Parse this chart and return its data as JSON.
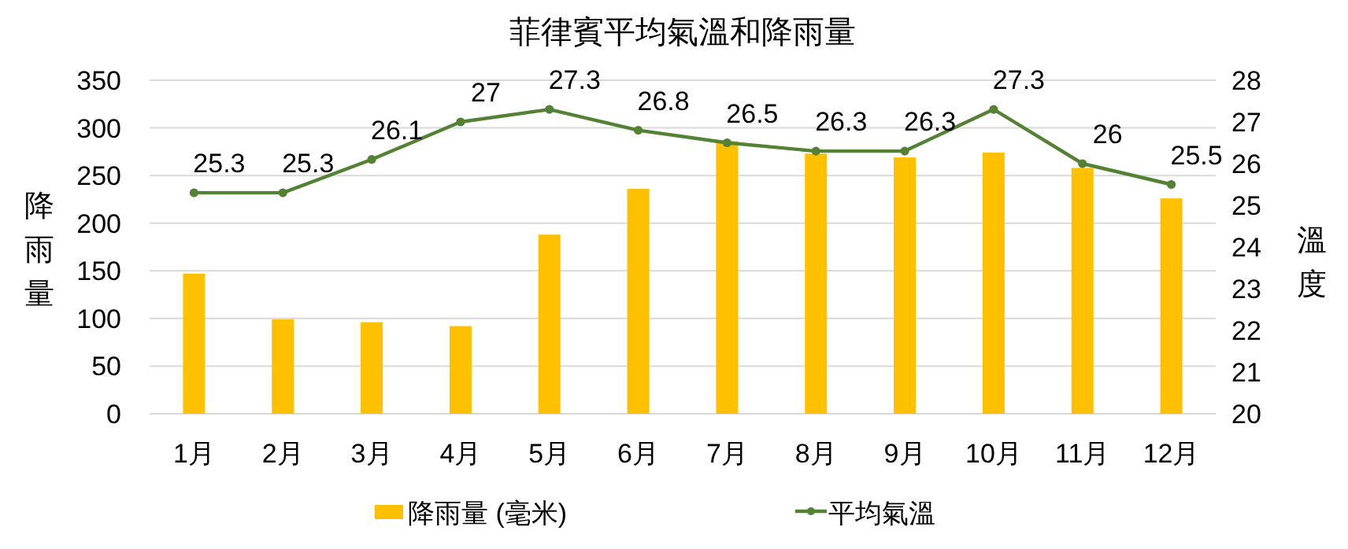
{
  "chart_data": {
    "type": "bar",
    "title": "菲律賓平均氣溫和降雨量",
    "ylabel": "降雨量",
    "y2label": "溫度",
    "categories": [
      "1月",
      "2月",
      "3月",
      "4月",
      "5月",
      "6月",
      "7月",
      "8月",
      "9月",
      "10月",
      "11月",
      "12月"
    ],
    "series": [
      {
        "name": "降雨量 (毫米)",
        "color": "#ffc000",
        "values": [
          147,
          99,
          96,
          92,
          188,
          236,
          286,
          273,
          269,
          274,
          258,
          226
        ]
      },
      {
        "name": "平均氣溫",
        "type": "line",
        "axis": "y2",
        "color": "#548235",
        "marker": "circle",
        "values": [
          25.3,
          25.3,
          26.1,
          27,
          27.3,
          26.8,
          26.5,
          26.3,
          26.3,
          27.3,
          26,
          25.5
        ],
        "value_labels": [
          "25.3",
          "25.3",
          "26.1",
          "27",
          "27.3",
          "26.8",
          "26.5",
          "26.3",
          "26.3",
          "27.3",
          "26",
          "25.5"
        ]
      }
    ],
    "ylim": [
      0,
      350
    ],
    "yticks": [
      0,
      50,
      100,
      150,
      200,
      250,
      300,
      350
    ],
    "y2lim": [
      20,
      28
    ],
    "y2ticks": [
      20,
      21,
      22,
      23,
      24,
      25,
      26,
      27,
      28
    ],
    "grid": "y",
    "legend": "bottom"
  }
}
